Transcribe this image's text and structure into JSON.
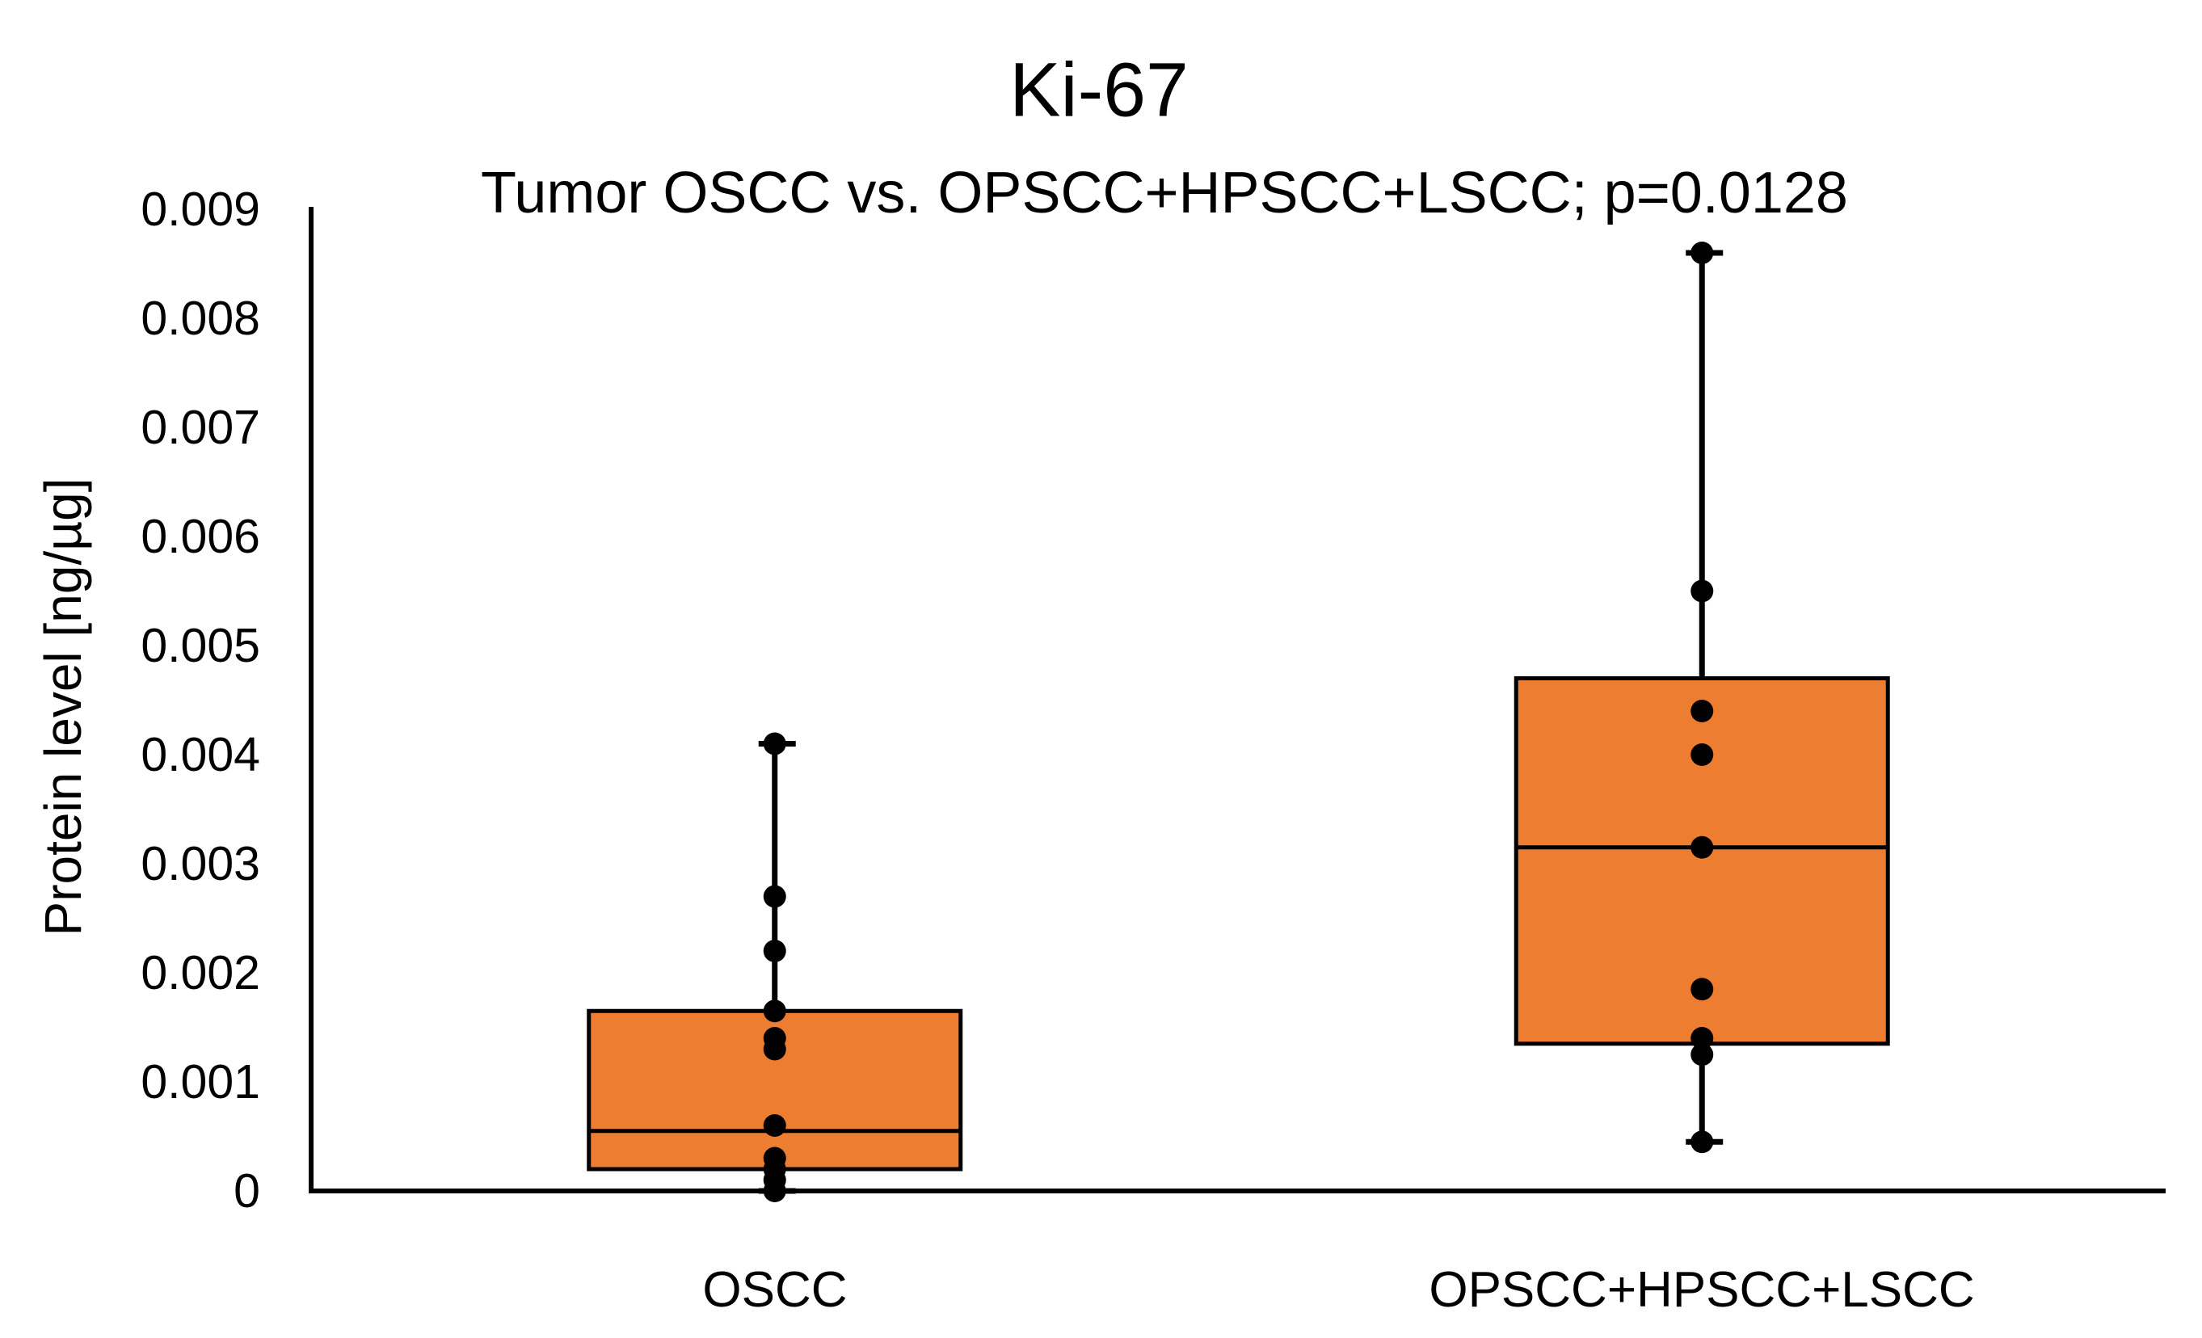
{
  "chart_data": {
    "type": "box",
    "title": "Ki-67",
    "subtitle": "Tumor OSCC vs. OPSCC+HPSCC+LSCC; p=0.0128",
    "ylabel": "Protein level [ng/µg]",
    "xlabel": "",
    "ylim": [
      0,
      0.009
    ],
    "ytick_step": 0.001,
    "ytick_labels": [
      "0",
      "0.001",
      "0.002",
      "0.003",
      "0.004",
      "0.005",
      "0.006",
      "0.007",
      "0.008",
      "0.009"
    ],
    "grid": false,
    "legend": "none",
    "colors": {
      "box_fill": "#ED7D31",
      "line": "#000000",
      "point": "#000000",
      "text": "#000000",
      "background": "#ffffff"
    },
    "groups": [
      {
        "label": "OSCC",
        "whisker_low": 0.0,
        "q1": 0.0002,
        "median": 0.00055,
        "q3": 0.00165,
        "whisker_high": 0.0041,
        "points": [
          0.0041,
          0.0027,
          0.0022,
          0.00165,
          0.0014,
          0.0013,
          0.0006,
          0.0003,
          0.0002,
          0.0001,
          0.0
        ]
      },
      {
        "label": "OPSCC+HPSCC+LSCC",
        "whisker_low": 0.00045,
        "q1": 0.00135,
        "median": 0.00315,
        "q3": 0.0047,
        "whisker_high": 0.0086,
        "points": [
          0.0086,
          0.0055,
          0.0044,
          0.004,
          0.00315,
          0.00185,
          0.0014,
          0.00125,
          0.00045
        ]
      }
    ]
  }
}
